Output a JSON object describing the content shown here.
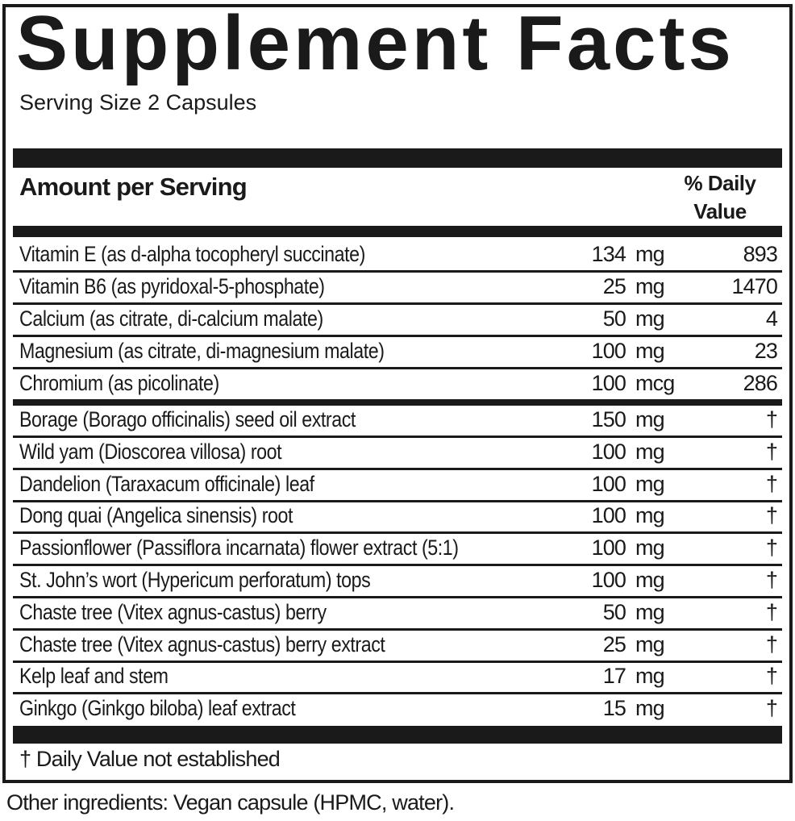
{
  "title": "Supplement Facts",
  "serving_size": "Serving Size 2 Capsules",
  "header": {
    "amount": "Amount per Serving",
    "dv_line1": "% Daily",
    "dv_line2": "Value"
  },
  "nutrients": [
    {
      "name": "Vitamin E (as d-alpha tocopheryl succinate)",
      "amount": "134",
      "unit": "mg",
      "dv": "893"
    },
    {
      "name": "Vitamin B6 (as pyridoxal-5-phosphate)",
      "amount": "25",
      "unit": "mg",
      "dv": "1470"
    },
    {
      "name": "Calcium (as citrate, di-calcium malate)",
      "amount": "50",
      "unit": "mg",
      "dv": "4"
    },
    {
      "name": "Magnesium (as citrate, di-magnesium malate)",
      "amount": "100",
      "unit": "mg",
      "dv": "23"
    },
    {
      "name": "Chromium (as picolinate)",
      "amount": "100",
      "unit": "mcg",
      "dv": "286"
    }
  ],
  "botanicals": [
    {
      "name": "Borage (Borago officinalis) seed oil extract",
      "amount": "150",
      "unit": "mg",
      "dv": "†"
    },
    {
      "name": "Wild yam (Dioscorea villosa) root",
      "amount": "100",
      "unit": "mg",
      "dv": "†"
    },
    {
      "name": "Dandelion (Taraxacum officinale) leaf",
      "amount": "100",
      "unit": "mg",
      "dv": "†"
    },
    {
      "name": "Dong quai (Angelica sinensis) root",
      "amount": "100",
      "unit": "mg",
      "dv": "†"
    },
    {
      "name": "Passionflower (Passiflora incarnata) flower extract (5:1)",
      "amount": "100",
      "unit": "mg",
      "dv": "†"
    },
    {
      "name": "St. John’s wort (Hypericum perforatum) tops",
      "amount": "100",
      "unit": "mg",
      "dv": "†"
    },
    {
      "name": "Chaste tree (Vitex agnus-castus) berry",
      "amount": "50",
      "unit": "mg",
      "dv": "†"
    },
    {
      "name": "Chaste tree (Vitex agnus-castus) berry extract",
      "amount": "25",
      "unit": "mg",
      "dv": "†"
    },
    {
      "name": "Kelp leaf and stem",
      "amount": "17",
      "unit": "mg",
      "dv": "†"
    },
    {
      "name": "Ginkgo (Ginkgo biloba) leaf extract",
      "amount": "15",
      "unit": "mg",
      "dv": "†"
    }
  ],
  "footnote": "†  Daily Value not established",
  "other_ingredients": "Other ingredients: Vegan capsule (HPMC, water)."
}
